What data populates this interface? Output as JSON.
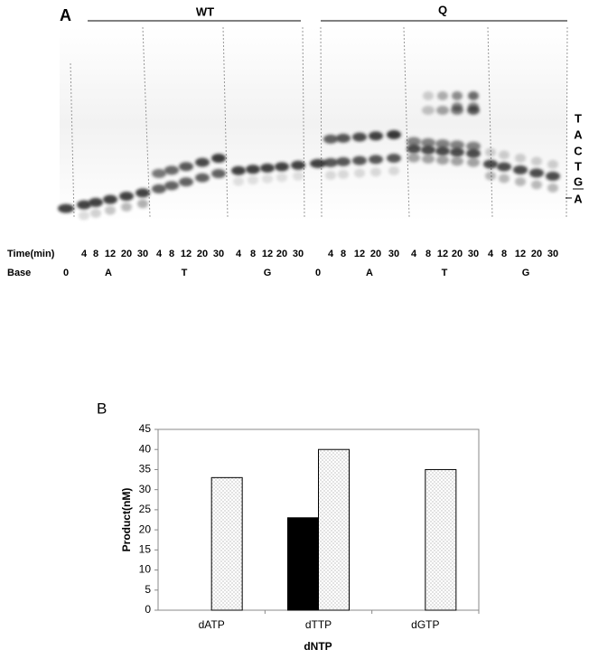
{
  "panel_a": {
    "label": "A",
    "groups": [
      "WT",
      "Q"
    ],
    "time_header": "Time(min)",
    "base_header": "Base",
    "time_row": [
      4,
      8,
      12,
      20,
      30,
      4,
      8,
      12,
      20,
      30,
      4,
      8,
      12,
      20,
      30,
      4,
      8,
      12,
      20,
      30,
      4,
      8,
      12,
      20,
      30,
      4,
      8,
      12,
      20,
      30
    ],
    "base_row": [
      "0",
      "A",
      "T",
      "G",
      "0",
      "A",
      "T",
      "G"
    ],
    "sequence": [
      "T",
      "A",
      "C",
      "T",
      "G",
      "A"
    ]
  },
  "chart_data": {
    "type": "bar",
    "panel_label": "B",
    "x_label": "dNTP",
    "y_label": "Product(nM)",
    "categories": [
      "dATP",
      "dTTP",
      "dGTP"
    ],
    "series": [
      {
        "color": "#000000",
        "values": [
          0,
          23,
          0
        ]
      },
      {
        "color": "#ffffff",
        "pattern": "dots",
        "values": [
          33,
          40,
          35
        ]
      }
    ],
    "ylim": [
      0,
      45
    ],
    "yticks": [
      0,
      5,
      10,
      15,
      20,
      25,
      30,
      35,
      40,
      45
    ],
    "grid": false
  }
}
